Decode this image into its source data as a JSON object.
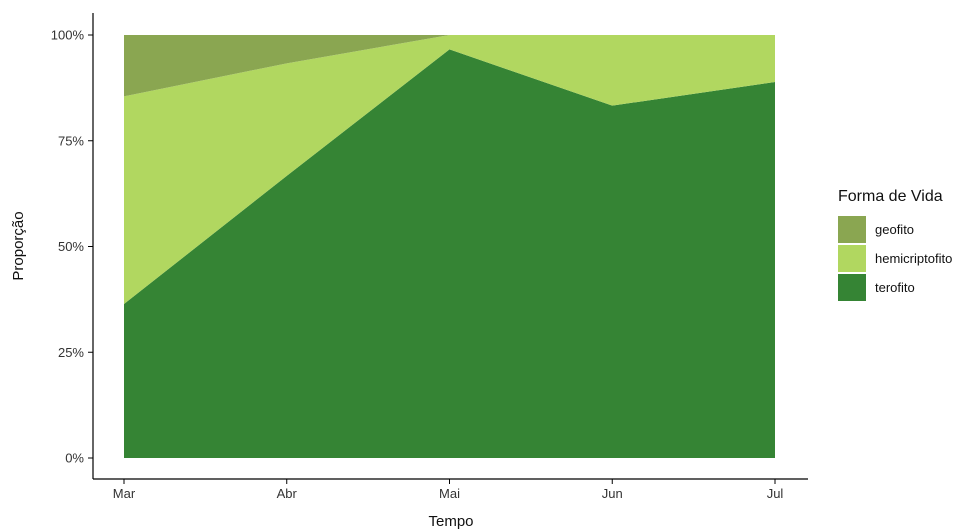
{
  "chart_data": {
    "type": "area",
    "stacked": true,
    "percent": true,
    "x": [
      "Mar",
      "Abr",
      "Mai",
      "Jun",
      "Jul"
    ],
    "xlabel": "Tempo",
    "ylabel": "Proporção",
    "ylim": [
      0,
      1
    ],
    "yticks": [
      "0%",
      "25%",
      "50%",
      "75%",
      "100%"
    ],
    "grid": false,
    "legend_position": "right",
    "legend_title": "Forma de Vida",
    "series": [
      {
        "name": "terofito",
        "color": "#358434",
        "values": [
          0.364,
          0.667,
          0.966,
          0.833,
          0.889
        ]
      },
      {
        "name": "hemicriptofito",
        "color": "#b1d760",
        "values": [
          0.491,
          0.266,
          0.034,
          0.167,
          0.111
        ]
      },
      {
        "name": "geofito",
        "color": "#8aa651",
        "values": [
          0.145,
          0.067,
          0.0,
          0.0,
          0.0
        ]
      }
    ],
    "legend_order": [
      "geofito",
      "hemicriptofito",
      "terofito"
    ]
  }
}
